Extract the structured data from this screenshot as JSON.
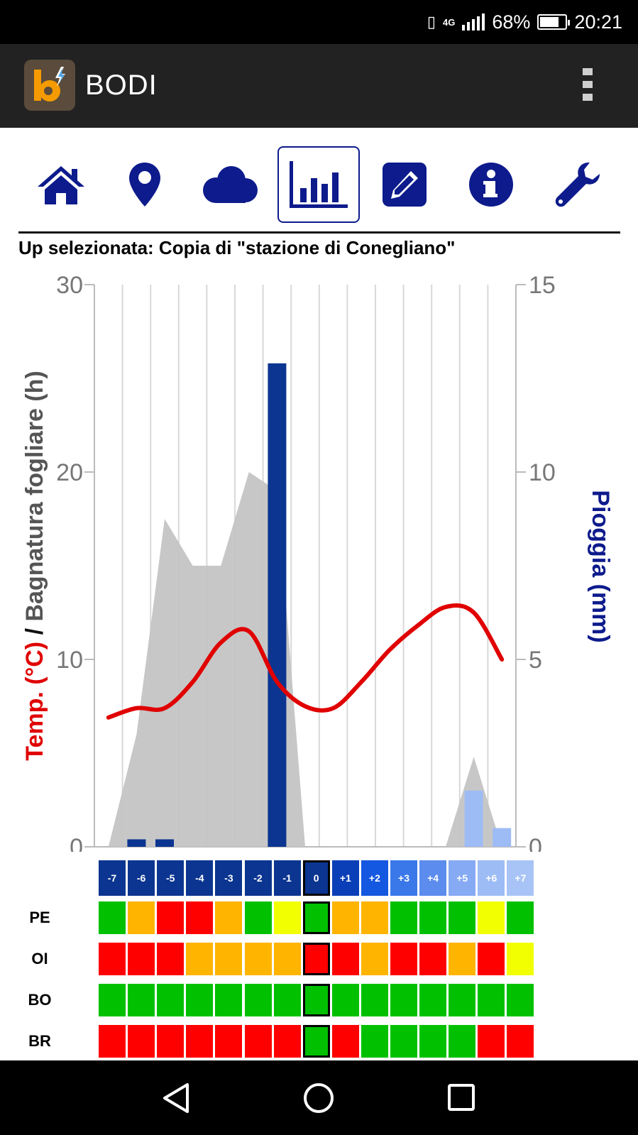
{
  "status_bar": {
    "network": "4G",
    "battery": "68%",
    "time": "20:21",
    "battery_level": 0.68
  },
  "app": {
    "title": "BODI"
  },
  "toolbar": {
    "items": [
      {
        "name": "home-icon"
      },
      {
        "name": "location-icon"
      },
      {
        "name": "cloud-icon"
      },
      {
        "name": "chart-icon",
        "active": true
      },
      {
        "name": "edit-icon"
      },
      {
        "name": "info-icon"
      },
      {
        "name": "wrench-icon"
      }
    ]
  },
  "subtitle": "Up selezionata: Copia di \"stazione di Conegliano\"",
  "colors": {
    "nav": "#0d1b8c",
    "temp": "#e00000",
    "wet": "#c4c4c4",
    "rain_past": "#0b3590",
    "rain_future": "#9dbcf5"
  },
  "chart_data": {
    "type": "combo",
    "left_axis": {
      "label_temp": "Temp. (°C)",
      "separator": " / ",
      "label_wet": "Bagnatura fogliare (h)",
      "ylim": [
        0,
        30
      ],
      "ticks": [
        "0",
        "10",
        "20",
        "30"
      ]
    },
    "right_axis": {
      "label": "Pioggia (mm)",
      "ylim": [
        0,
        15
      ],
      "ticks": [
        "0",
        "5",
        "10",
        "15"
      ]
    },
    "categories": [
      "-7",
      "-6",
      "-5",
      "-4",
      "-3",
      "-2",
      "-1",
      "0",
      "+1",
      "+2",
      "+3",
      "+4",
      "+5",
      "+6",
      "+7"
    ],
    "temperature": [
      6.9,
      7.4,
      7.4,
      8.8,
      10.9,
      11.5,
      8.8,
      7.5,
      7.4,
      8.8,
      10.5,
      11.8,
      12.8,
      12.5,
      10.0
    ],
    "leaf_wetness": [
      0,
      6,
      17.5,
      15,
      15,
      20,
      19,
      0,
      0,
      0,
      0,
      0,
      0,
      4.8,
      0
    ],
    "rain": [
      0,
      0.2,
      0.2,
      0,
      0,
      0,
      12.9,
      0,
      0,
      0,
      0,
      0,
      0,
      1.5,
      0.5
    ],
    "rain_future_from": 13
  },
  "grid": {
    "day_colors": [
      "#0b3590",
      "#0b3590",
      "#0b3590",
      "#0b3590",
      "#0b3590",
      "#0b3590",
      "#0b3590",
      "#0b3590",
      "#0b3fb8",
      "#1457e0",
      "#3a78ea",
      "#5b8cee",
      "#86aaf3",
      "#9dbcf5",
      "#a8c4f6"
    ],
    "rows": [
      {
        "label": "PE",
        "cells": [
          "G",
          "O",
          "R",
          "R",
          "O",
          "G",
          "Y",
          "G",
          "O",
          "O",
          "G",
          "G",
          "G",
          "Y",
          "G"
        ]
      },
      {
        "label": "OI",
        "cells": [
          "R",
          "R",
          "R",
          "O",
          "O",
          "O",
          "O",
          "R",
          "R",
          "O",
          "R",
          "R",
          "O",
          "R",
          "Y"
        ]
      },
      {
        "label": "BO",
        "cells": [
          "G",
          "G",
          "G",
          "G",
          "G",
          "G",
          "G",
          "G",
          "G",
          "G",
          "G",
          "G",
          "G",
          "G",
          "G"
        ]
      },
      {
        "label": "BR",
        "cells": [
          "R",
          "R",
          "R",
          "R",
          "R",
          "R",
          "R",
          "G",
          "R",
          "G",
          "G",
          "G",
          "G",
          "R",
          "R"
        ]
      }
    ],
    "palette": {
      "G": "#00c000",
      "O": "#ffb400",
      "R": "#ff0000",
      "Y": "#f2ff00"
    },
    "current_index": 7
  }
}
